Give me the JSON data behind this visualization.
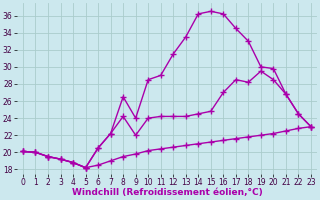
{
  "xlabel": "Windchill (Refroidissement éolien,°C)",
  "bg_color": "#cce8ee",
  "line_color": "#aa00aa",
  "grid_color": "#aacccc",
  "xlim": [
    -0.5,
    23.5
  ],
  "ylim": [
    17.5,
    37.5
  ],
  "yticks": [
    18,
    20,
    22,
    24,
    26,
    28,
    30,
    32,
    34,
    36
  ],
  "xticks": [
    0,
    1,
    2,
    3,
    4,
    5,
    6,
    7,
    8,
    9,
    10,
    11,
    12,
    13,
    14,
    15,
    16,
    17,
    18,
    19,
    20,
    21,
    22,
    23
  ],
  "line_bottom_x": [
    0,
    1,
    2,
    3,
    4,
    5,
    6,
    7,
    8,
    9,
    10,
    11,
    12,
    13,
    14,
    15,
    16,
    17,
    18,
    19,
    20,
    21,
    22,
    23
  ],
  "line_bottom_y": [
    20.1,
    20.0,
    19.5,
    19.2,
    18.8,
    18.2,
    18.5,
    19.0,
    19.5,
    19.8,
    20.2,
    20.4,
    20.6,
    20.8,
    21.0,
    21.2,
    21.4,
    21.6,
    21.8,
    22.0,
    22.2,
    22.5,
    22.8,
    23.0
  ],
  "line_mid_x": [
    0,
    1,
    2,
    3,
    4,
    5,
    6,
    7,
    8,
    9,
    10,
    11,
    12,
    13,
    14,
    15,
    16,
    17,
    18,
    19,
    20,
    21,
    22,
    23
  ],
  "line_mid_y": [
    20.1,
    20.0,
    19.5,
    19.2,
    18.8,
    18.2,
    20.5,
    22.2,
    24.2,
    22.0,
    24.0,
    24.2,
    24.2,
    24.2,
    24.5,
    24.8,
    27.0,
    28.5,
    28.2,
    29.5,
    28.5,
    26.8,
    24.5,
    23.0
  ],
  "line_top_x": [
    0,
    1,
    2,
    3,
    4,
    5,
    6,
    7,
    8,
    9,
    10,
    11,
    12,
    13,
    14,
    15,
    16,
    17,
    18,
    19,
    20,
    21,
    22,
    23
  ],
  "line_top_y": [
    20.1,
    20.0,
    19.5,
    19.2,
    18.8,
    18.2,
    20.5,
    22.2,
    26.5,
    24.0,
    28.5,
    29.0,
    31.5,
    33.5,
    36.2,
    36.5,
    36.2,
    34.5,
    33.0,
    30.0,
    29.8,
    26.8,
    24.5,
    23.0
  ],
  "marker": "+",
  "markersize": 4,
  "linewidth": 1.0,
  "tick_fontsize": 5.5,
  "xlabel_fontsize": 6.5
}
